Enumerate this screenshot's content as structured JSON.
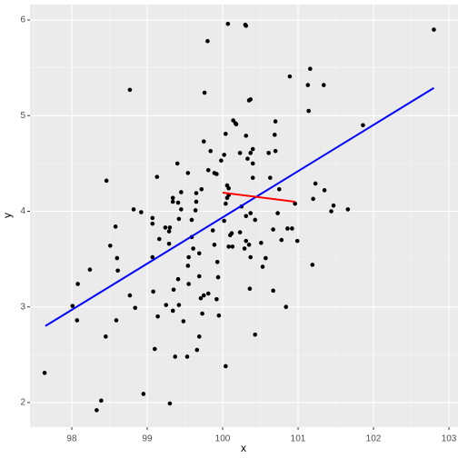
{
  "chart_data": {
    "type": "scatter",
    "x_label": "x",
    "y_label": "y",
    "x": [
      97.64,
      98.39,
      98.33,
      98.95,
      99.3,
      100.04,
      99.53,
      99.37,
      99.1,
      99.66,
      98.45,
      100.43,
      98.01,
      98.07,
      98.59,
      98.84,
      98.77,
      98.24,
      98.08,
      98.61,
      98.6,
      98.51,
      98.58,
      98.82,
      98.92,
      98.46,
      98.77,
      99.07,
      99.07,
      99.07,
      99.16,
      99.08,
      99.25,
      99.14,
      99.34,
      99.42,
      99.48,
      99.35,
      99.41,
      99.29,
      99.3,
      99.29,
      99.34,
      99.41,
      99.34,
      99.42,
      99.45,
      99.45,
      99.13,
      99.4,
      99.24,
      99.54,
      99.59,
      99.59,
      99.61,
      99.55,
      99.54,
      99.55,
      99.69,
      99.65,
      99.65,
      99.64,
      99.72,
      99.69,
      99.69,
      99.71,
      99.73,
      99.75,
      99.81,
      99.75,
      99.76,
      99.8,
      99.81,
      99.84,
      99.89,
      99.92,
      99.87,
      99.89,
      99.93,
      99.94,
      99.92,
      99.95,
      99.98,
      100.02,
      100.04,
      100.06,
      100.04,
      100.08,
      100.06,
      100.08,
      100.07,
      100.02,
      100.1,
      100.08,
      100.13,
      100.12,
      100.14,
      100.17,
      100.18,
      100.23,
      100.25,
      100.23,
      100.29,
      100.3,
      100.31,
      100.31,
      100.33,
      100.35,
      100.37,
      100.37,
      100.4,
      100.4,
      100.4,
      100.37,
      100.31,
      100.35,
      100.31,
      100.37,
      100.36,
      100.43,
      100.51,
      100.53,
      100.57,
      100.61,
      100.63,
      100.67,
      100.67,
      100.69,
      100.7,
      100.7,
      100.75,
      100.73,
      100.78,
      100.84,
      100.86,
      100.89,
      100.92,
      100.96,
      100.99,
      101.13,
      101.14,
      101.16,
      101.2,
      101.19,
      101.23,
      101.34,
      101.35,
      101.44,
      101.47,
      101.66,
      101.86,
      102.8
    ],
    "values": [
      2.31,
      2.02,
      1.92,
      2.09,
      1.99,
      2.38,
      2.48,
      2.48,
      2.56,
      2.55,
      2.69,
      2.71,
      3.01,
      2.86,
      2.86,
      2.99,
      3.12,
      3.39,
      3.24,
      3.38,
      3.51,
      3.64,
      3.84,
      4.02,
      3.99,
      4.32,
      5.27,
      3.87,
      3.93,
      3.52,
      3.71,
      3.16,
      3.02,
      2.9,
      2.96,
      3.02,
      2.85,
      3.18,
      3.29,
      3.66,
      3.83,
      3.79,
      4.14,
      4.09,
      4.1,
      3.92,
      4.02,
      4.2,
      4.36,
      4.5,
      3.83,
      4.4,
      3.91,
      3.73,
      3.61,
      3.52,
      3.43,
      3.24,
      3.32,
      4.1,
      4.19,
      4.01,
      4.23,
      3.56,
      2.69,
      3.09,
      2.93,
      3.12,
      3.14,
      4.73,
      5.24,
      5.78,
      4.43,
      4.63,
      4.4,
      4.39,
      3.8,
      3.65,
      3.47,
      3.31,
      3.08,
      2.91,
      4.53,
      4.59,
      4.81,
      4.27,
      4.08,
      4.17,
      4.14,
      4.24,
      5.96,
      3.9,
      3.75,
      3.63,
      3.63,
      3.77,
      4.95,
      4.92,
      4.91,
      4.61,
      4.05,
      3.78,
      3.61,
      5.95,
      5.94,
      4.79,
      4.55,
      5.16,
      5.17,
      4.61,
      4.65,
      4.5,
      4.35,
      3.98,
      3.95,
      3.65,
      3.69,
      3.52,
      3.19,
      3.91,
      3.67,
      3.42,
      3.51,
      4.61,
      4.35,
      3.81,
      3.17,
      4.8,
      4.63,
      4.94,
      4.23,
      3.98,
      3.7,
      3.0,
      3.82,
      5.41,
      3.82,
      4.08,
      3.69,
      5.32,
      5.05,
      5.49,
      4.13,
      3.44,
      4.29,
      5.32,
      4.22,
      4.0,
      4.06,
      4.02,
      4.9,
      5.9
    ],
    "color": "#000000",
    "lines": [
      {
        "color": "#0000ff",
        "x": [
          97.65,
          102.8
        ],
        "y": [
          2.8,
          5.29
        ]
      },
      {
        "color": "#ff0000",
        "x": [
          100.0,
          100.96
        ],
        "y": [
          4.195,
          4.1
        ]
      }
    ],
    "xlim": [
      97.446,
      103.12
    ],
    "ylim": [
      1.743,
      6.162
    ],
    "xticks": [
      98,
      99,
      100,
      101,
      102,
      103
    ],
    "yticks": [
      2,
      3,
      4,
      5,
      6
    ],
    "x_minor_ticks": [
      97.5,
      98.5,
      99.5,
      100.5,
      101.5,
      102.5
    ],
    "y_minor_ticks": [
      2.5,
      3.5,
      4.5,
      5.5
    ],
    "grid": true
  }
}
